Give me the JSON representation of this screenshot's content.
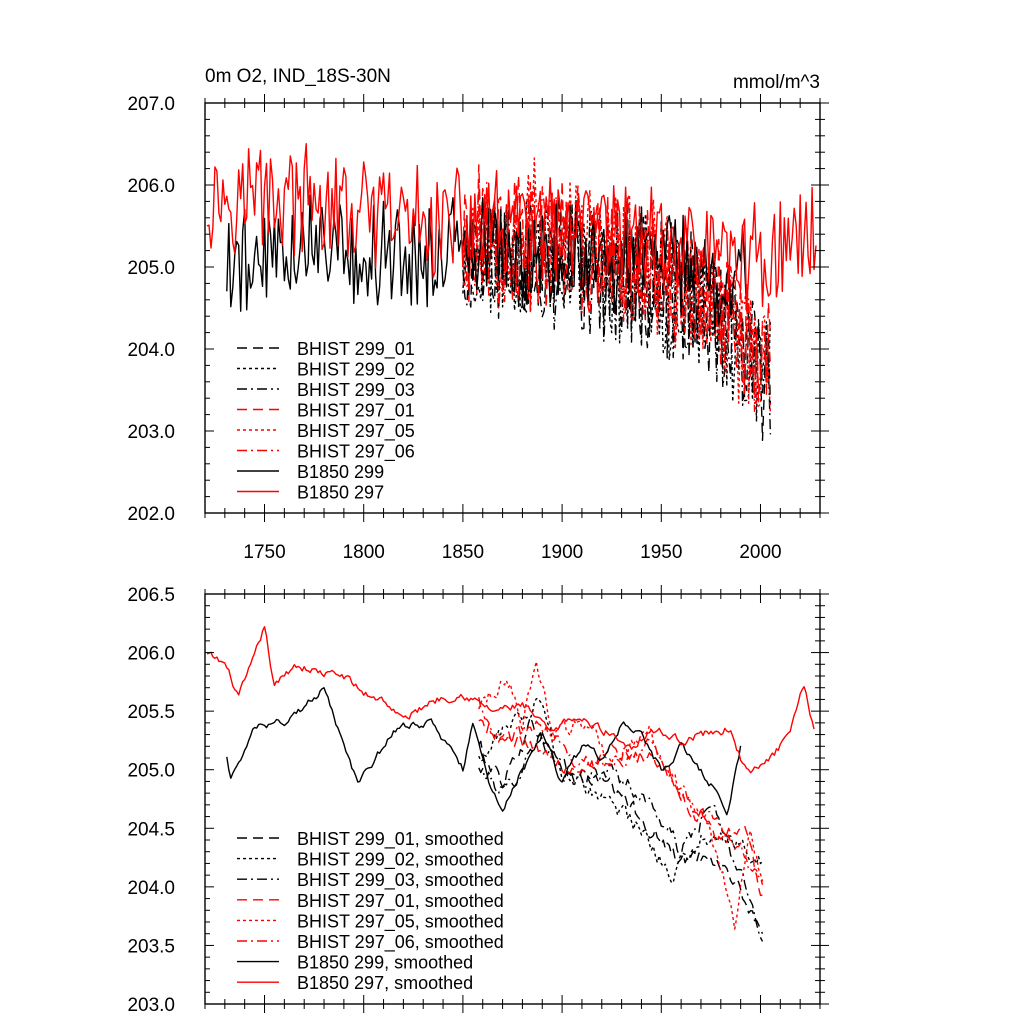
{
  "title_left": "0m O2, IND_18S-30N",
  "title_right": "mmol/m^3",
  "colors": {
    "black": "#000000",
    "red": "#ff0000",
    "frame": "#000000"
  },
  "chart_data": [
    {
      "type": "line",
      "panel": "top",
      "xlim": [
        1720,
        2030
      ],
      "ylim": [
        202.0,
        207.0
      ],
      "xticks": [
        1750,
        1800,
        1850,
        1900,
        1950,
        2000
      ],
      "yticks": [
        202.0,
        203.0,
        204.0,
        205.0,
        206.0,
        207.0
      ],
      "series": [
        {
          "name": "BHIST 299_01",
          "color": "#000000",
          "dash": "long",
          "start": 1850,
          "end": 2005,
          "seed": 11,
          "mean": [
            [
              1850,
              205.2
            ],
            [
              1900,
              205.1
            ],
            [
              1950,
              204.8
            ],
            [
              1980,
              204.3
            ],
            [
              2005,
              203.6
            ]
          ],
          "amp": 0.75
        },
        {
          "name": "BHIST 299_02",
          "color": "#000000",
          "dash": "short",
          "start": 1850,
          "end": 2005,
          "seed": 23,
          "mean": [
            [
              1850,
              205.1
            ],
            [
              1900,
              205.2
            ],
            [
              1950,
              204.7
            ],
            [
              1980,
              204.3
            ],
            [
              2005,
              203.7
            ]
          ],
          "amp": 0.75
        },
        {
          "name": "BHIST 299_03",
          "color": "#000000",
          "dash": "dashdot",
          "start": 1850,
          "end": 2005,
          "seed": 37,
          "mean": [
            [
              1850,
              205.3
            ],
            [
              1900,
              205.0
            ],
            [
              1950,
              204.8
            ],
            [
              1980,
              204.2
            ],
            [
              2005,
              203.6
            ]
          ],
          "amp": 0.75
        },
        {
          "name": "BHIST 297_01",
          "color": "#ff0000",
          "dash": "long",
          "start": 1850,
          "end": 2005,
          "seed": 41,
          "mean": [
            [
              1850,
              205.4
            ],
            [
              1900,
              205.3
            ],
            [
              1950,
              205.0
            ],
            [
              1980,
              204.5
            ],
            [
              2005,
              203.9
            ]
          ],
          "amp": 0.75
        },
        {
          "name": "BHIST 297_05",
          "color": "#ff0000",
          "dash": "short",
          "start": 1850,
          "end": 2005,
          "seed": 53,
          "mean": [
            [
              1850,
              205.3
            ],
            [
              1890,
              205.6
            ],
            [
              1950,
              204.9
            ],
            [
              1980,
              204.3
            ],
            [
              2005,
              203.8
            ]
          ],
          "amp": 0.75
        },
        {
          "name": "BHIST 297_06",
          "color": "#ff0000",
          "dash": "dashdot",
          "start": 1850,
          "end": 2005,
          "seed": 67,
          "mean": [
            [
              1850,
              205.4
            ],
            [
              1900,
              205.2
            ],
            [
              1950,
              205.0
            ],
            [
              1980,
              204.5
            ],
            [
              2005,
              203.9
            ]
          ],
          "amp": 0.75
        },
        {
          "name": "B1850 299",
          "color": "#000000",
          "dash": "solid",
          "start": 1731,
          "end": 1993,
          "seed": 79,
          "mean": [
            [
              1731,
              205.0
            ],
            [
              1780,
              205.4
            ],
            [
              1800,
              205.1
            ],
            [
              1850,
              205.2
            ],
            [
              1900,
              205.1
            ],
            [
              1950,
              205.2
            ],
            [
              1980,
              204.8
            ],
            [
              1993,
              205.0
            ]
          ],
          "amp": 0.6
        },
        {
          "name": "B1850 297",
          "color": "#ff0000",
          "dash": "solid",
          "start": 1721,
          "end": 2028,
          "seed": 97,
          "mean": [
            [
              1721,
              205.9
            ],
            [
              1750,
              205.9
            ],
            [
              1800,
              205.6
            ],
            [
              1850,
              205.5
            ],
            [
              1900,
              205.4
            ],
            [
              1950,
              205.3
            ],
            [
              2000,
              205.1
            ],
            [
              2028,
              205.4
            ]
          ],
          "amp": 0.6
        }
      ]
    },
    {
      "type": "line",
      "panel": "bottom",
      "xlim": [
        1720,
        2030
      ],
      "ylim": [
        203.0,
        206.5
      ],
      "yticks": [
        203.0,
        203.5,
        204.0,
        204.5,
        205.0,
        205.5,
        206.0,
        206.5
      ],
      "series": [
        {
          "name": "BHIST 299_01, smoothed",
          "color": "#000000",
          "dash": "long",
          "start": 1858,
          "end": 2001,
          "seed": 11,
          "amp": 0.12,
          "points": [
            [
              1858,
              205.2
            ],
            [
              1870,
              204.9
            ],
            [
              1885,
              205.4
            ],
            [
              1900,
              205.0
            ],
            [
              1920,
              204.9
            ],
            [
              1940,
              204.6
            ],
            [
              1960,
              204.2
            ],
            [
              1975,
              204.3
            ],
            [
              1985,
              204.1
            ],
            [
              1995,
              203.8
            ],
            [
              2001,
              203.5
            ]
          ]
        },
        {
          "name": "BHIST 299_02, smoothed",
          "color": "#000000",
          "dash": "short",
          "start": 1858,
          "end": 2001,
          "seed": 23,
          "amp": 0.12,
          "points": [
            [
              1858,
              205.1
            ],
            [
              1870,
              205.3
            ],
            [
              1888,
              205.6
            ],
            [
              1900,
              205.0
            ],
            [
              1920,
              204.8
            ],
            [
              1940,
              204.5
            ],
            [
              1955,
              204.1
            ],
            [
              1970,
              204.4
            ],
            [
              1985,
              204.4
            ],
            [
              2001,
              204.2
            ]
          ]
        },
        {
          "name": "BHIST 299_03, smoothed",
          "color": "#000000",
          "dash": "dashdot",
          "start": 1858,
          "end": 2001,
          "seed": 37,
          "amp": 0.12,
          "points": [
            [
              1858,
              205.0
            ],
            [
              1872,
              204.8
            ],
            [
              1888,
              205.3
            ],
            [
              1905,
              204.9
            ],
            [
              1925,
              205.0
            ],
            [
              1945,
              204.7
            ],
            [
              1960,
              204.3
            ],
            [
              1975,
              204.7
            ],
            [
              1990,
              204.1
            ],
            [
              2001,
              203.6
            ]
          ]
        },
        {
          "name": "BHIST 297_01, smoothed",
          "color": "#ff0000",
          "dash": "long",
          "start": 1858,
          "end": 2001,
          "seed": 41,
          "amp": 0.12,
          "points": [
            [
              1858,
              205.4
            ],
            [
              1870,
              205.3
            ],
            [
              1888,
              205.2
            ],
            [
              1905,
              205.0
            ],
            [
              1925,
              205.2
            ],
            [
              1945,
              205.1
            ],
            [
              1960,
              204.8
            ],
            [
              1980,
              204.4
            ],
            [
              1992,
              204.5
            ],
            [
              2001,
              203.9
            ]
          ]
        },
        {
          "name": "BHIST 297_05, smoothed",
          "color": "#ff0000",
          "dash": "short",
          "start": 1858,
          "end": 2001,
          "seed": 53,
          "amp": 0.12,
          "points": [
            [
              1858,
              205.5
            ],
            [
              1872,
              205.8
            ],
            [
              1880,
              205.4
            ],
            [
              1887,
              206.0
            ],
            [
              1895,
              205.3
            ],
            [
              1910,
              205.4
            ],
            [
              1925,
              205.1
            ],
            [
              1945,
              205.3
            ],
            [
              1960,
              204.8
            ],
            [
              1975,
              204.5
            ],
            [
              1987,
              203.7
            ],
            [
              1995,
              204.5
            ],
            [
              2001,
              204.0
            ]
          ]
        },
        {
          "name": "BHIST 297_06, smoothed",
          "color": "#ff0000",
          "dash": "dashdot",
          "start": 1858,
          "end": 2001,
          "seed": 67,
          "amp": 0.12,
          "points": [
            [
              1858,
              205.6
            ],
            [
              1870,
              205.2
            ],
            [
              1888,
              205.4
            ],
            [
              1905,
              205.1
            ],
            [
              1925,
              205.0
            ],
            [
              1945,
              205.2
            ],
            [
              1960,
              204.8
            ],
            [
              1975,
              204.6
            ],
            [
              1990,
              204.3
            ],
            [
              2001,
              204.0
            ]
          ]
        },
        {
          "name": "B1850 299, smoothed",
          "color": "#000000",
          "dash": "solid",
          "start": 1731,
          "end": 1990,
          "seed": 79,
          "amp": 0.06,
          "points": [
            [
              1731,
              205.1
            ],
            [
              1733,
              204.93
            ],
            [
              1745,
              205.35
            ],
            [
              1760,
              205.4
            ],
            [
              1775,
              205.6
            ],
            [
              1780,
              205.68
            ],
            [
              1790,
              205.2
            ],
            [
              1797,
              204.9
            ],
            [
              1803,
              205.0
            ],
            [
              1815,
              205.35
            ],
            [
              1835,
              205.4
            ],
            [
              1850,
              205.0
            ],
            [
              1855,
              205.4
            ],
            [
              1863,
              204.9
            ],
            [
              1870,
              204.7
            ],
            [
              1880,
              205.0
            ],
            [
              1890,
              205.3
            ],
            [
              1900,
              204.9
            ],
            [
              1910,
              205.2
            ],
            [
              1920,
              205.1
            ],
            [
              1930,
              205.4
            ],
            [
              1940,
              205.3
            ],
            [
              1950,
              205.0
            ],
            [
              1960,
              205.2
            ],
            [
              1970,
              205.0
            ],
            [
              1978,
              204.8
            ],
            [
              1983,
              204.6
            ],
            [
              1990,
              205.2
            ]
          ]
        },
        {
          "name": "B1850 297, smoothed",
          "color": "#ff0000",
          "dash": "solid",
          "start": 1721,
          "end": 2027,
          "seed": 97,
          "amp": 0.06,
          "points": [
            [
              1721,
              205.98
            ],
            [
              1730,
              205.9
            ],
            [
              1737,
              205.62
            ],
            [
              1745,
              205.95
            ],
            [
              1750,
              206.22
            ],
            [
              1755,
              205.7
            ],
            [
              1765,
              205.9
            ],
            [
              1780,
              205.82
            ],
            [
              1790,
              205.8
            ],
            [
              1800,
              205.65
            ],
            [
              1810,
              205.6
            ],
            [
              1820,
              205.42
            ],
            [
              1835,
              205.6
            ],
            [
              1850,
              205.65
            ],
            [
              1865,
              205.5
            ],
            [
              1880,
              205.55
            ],
            [
              1895,
              205.3
            ],
            [
              1905,
              205.45
            ],
            [
              1920,
              205.35
            ],
            [
              1935,
              205.2
            ],
            [
              1945,
              205.35
            ],
            [
              1960,
              205.25
            ],
            [
              1970,
              205.3
            ],
            [
              1985,
              205.35
            ],
            [
              1990,
              205.1
            ],
            [
              1995,
              204.95
            ],
            [
              2005,
              205.1
            ],
            [
              2015,
              205.3
            ],
            [
              2022,
              205.72
            ],
            [
              2027,
              205.35
            ]
          ]
        }
      ]
    }
  ]
}
